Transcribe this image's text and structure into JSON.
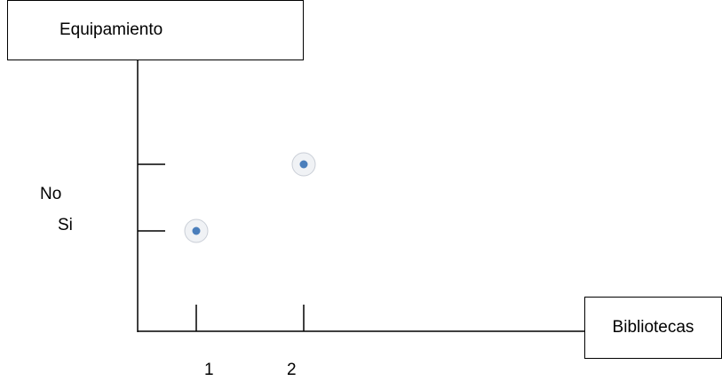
{
  "chart_data": {
    "type": "scatter",
    "ylabel": "Equipamiento",
    "xlabel": "Bibliotecas",
    "x_ticks": [
      "1",
      "2"
    ],
    "y_ticks": [
      "No",
      "Si"
    ],
    "points": [
      {
        "x": "1",
        "y": "Si"
      },
      {
        "x": "2",
        "y": "No"
      }
    ],
    "point_color": "#4a7ebb",
    "grid": false
  }
}
